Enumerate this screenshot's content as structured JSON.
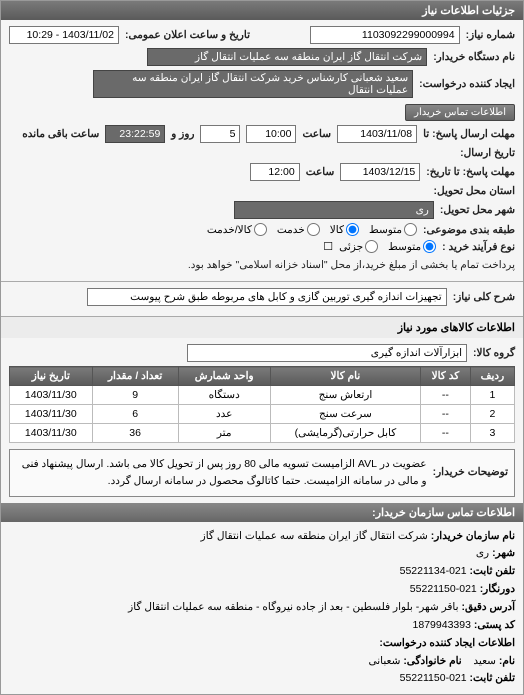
{
  "panel1": {
    "title": "جزئیات اطلاعات نیاز",
    "req_no_label": "شماره نیاز:",
    "req_no": "1103092299000994",
    "announce_label": "تاریخ و ساعت اعلان عمومی:",
    "announce_val": "1403/11/02 - 10:29",
    "buyer_org_label": "نام دستگاه خریدار:",
    "buyer_org": "شرکت انتقال گاز ایران منطقه سه عملیات انتقال گاز",
    "requester_label": "ایجاد کننده درخواست:",
    "requester": "سعید شعبانی کارشناس خرید شرکت انتقال گاز ایران منطقه سه عملیات انتقال",
    "btn_buyer_contact": "اطلاعات تماس خریدار",
    "deadline_send_label": "مهلت ارسال پاسخ: تا",
    "deadline_send_date": "1403/11/08",
    "time1_label": "ساعت",
    "time1_val": "10:00",
    "days_and_label": "روز و",
    "days_val": "5",
    "remain_label": "ساعت باقی مانده",
    "remain_val": "23:22:59",
    "history_send_label": "تاریخ ارسال:",
    "deadline_to_label": "مهلت پاسخ: تا تاریخ:",
    "deadline_to_date": "1403/12/15",
    "time2_label": "ساعت",
    "time2_val": "12:00",
    "delivery_state_label": "استان محل تحویل:",
    "delivery_city_label": "شهر محل تحویل:",
    "delivery_city": "ری",
    "priority_label": "طبقه بندی موضوعی:",
    "priority_opts": {
      "a": "متوسط",
      "b": "کالا",
      "c": "خدمت",
      "d": "کالا/خدمت"
    },
    "process_label": "نوع فرآیند خرید :",
    "process_opts": {
      "a": "متوسط",
      "b": "جزئی"
    },
    "process_note": "پرداخت تمام یا بخشی از مبلغ خرید،از محل \"اسناد خزانه اسلامی\" خواهد بود.",
    "process_radio": "☐"
  },
  "desc": {
    "label": "شرح کلی نیاز:",
    "value": "تجهیزات اندازه گیری توربین گازی و کابل های مربوطه طبق شرح پیوست"
  },
  "goods": {
    "section_title": "اطلاعات کالاهای مورد نیاز",
    "group_label": "گروه کالا:",
    "group_value": "ابزارآلات اندازه گیری",
    "columns": [
      "ردیف",
      "کد کالا",
      "نام کالا",
      "واحد شمارش",
      "تعداد / مقدار",
      "تاریخ نیاز"
    ],
    "rows": [
      [
        "1",
        "--",
        "ارتعاش سنج",
        "دستگاه",
        "9",
        "1403/11/30"
      ],
      [
        "2",
        "--",
        "سرعت سنج",
        "عدد",
        "6",
        "1403/11/30"
      ],
      [
        "3",
        "--",
        "کابل حرارتی(گرمایشی)",
        "متر",
        "36",
        "1403/11/30"
      ]
    ]
  },
  "buyer_note": {
    "label": "توضیحات خریدار:",
    "text": "عضویت در AVL الزامیست تسویه مالی 80 روز پس از تحویل کالا می باشد. ارسال پیشنهاد فنی و مالی در سامانه الزامیست. حتما کاتالوگ محصول در سامانه ارسال گردد."
  },
  "contact": {
    "header": "اطلاعات تماس سازمان خریدار:",
    "org_label": "نام سازمان خریدار:",
    "org": "شرکت انتقال گاز ایران منطقه سه عملیات انتقال گاز",
    "city_label": "شهر:",
    "city": "ری",
    "phone_label": "تلفن ثابت:",
    "phone": "021-55221134",
    "fax_label": "دورنگار:",
    "fax": "021-55221150",
    "addr_label": "آدرس دقیق:",
    "addr": "باقر شهر- بلوار فلسطین - بعد از جاده نیروگاه - منطقه سه عملیات انتقال گاز",
    "post_label": "کد پستی:",
    "post": "1879943393",
    "creator_header": "اطلاعات ایجاد کننده درخواست:",
    "name_label": "نام:",
    "name": "سعید",
    "lname_label": "نام خانوادگی:",
    "lname": "شعبانی",
    "cphone_label": "تلفن ثابت:",
    "cphone": "021-55221150"
  }
}
